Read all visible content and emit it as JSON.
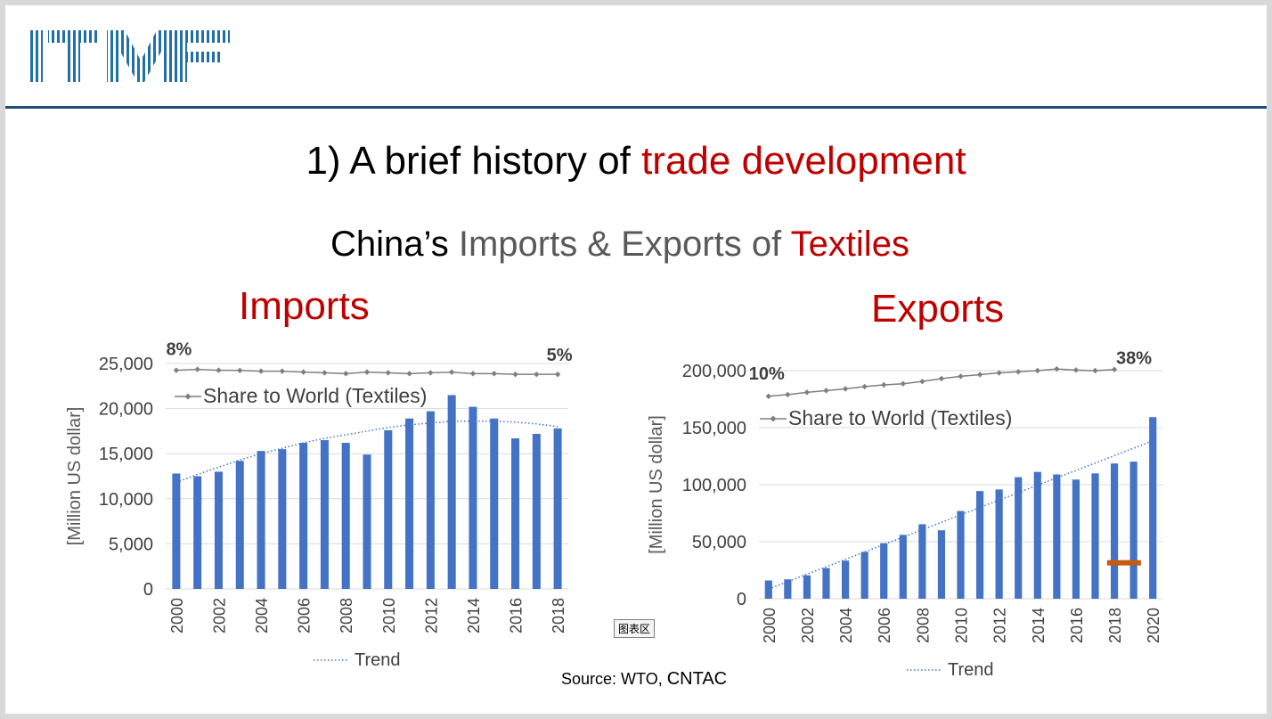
{
  "slide": {
    "logo_text": "ITMF",
    "title_part1": "1) A brief history of ",
    "title_part2": "trade development",
    "subtitle_part1": "China’s ",
    "subtitle_part2": "Imports & Exports of ",
    "subtitle_part3": "Textiles",
    "source_prefix": "Source: WTO, ",
    "source_suffix": "CNTAC",
    "chart_area_tooltip": "图表区",
    "colors": {
      "bar": "#4472c4",
      "red": "#c00000",
      "rule": "#1f4e79",
      "share_line": "#7f7f7f",
      "highlight": "#c55a11"
    }
  },
  "chart_data": [
    {
      "type": "bar",
      "heading": "Imports",
      "ylabel": "[Million US dollar]",
      "ylim": [
        0,
        25000
      ],
      "yticks": [
        0,
        5000,
        10000,
        15000,
        20000,
        25000
      ],
      "ytick_labels": [
        "0",
        "5,000",
        "10,000",
        "15,000",
        "20,000",
        "25,000"
      ],
      "categories": [
        2000,
        2001,
        2002,
        2003,
        2004,
        2005,
        2006,
        2007,
        2008,
        2009,
        2010,
        2011,
        2012,
        2013,
        2014,
        2015,
        2016,
        2017,
        2018
      ],
      "xtick_labels": [
        "2000",
        "2002",
        "2004",
        "2006",
        "2008",
        "2010",
        "2012",
        "2014",
        "2016",
        "2018"
      ],
      "values": [
        12800,
        12500,
        13000,
        14200,
        15300,
        15500,
        16200,
        16500,
        16200,
        14900,
        17600,
        18900,
        19700,
        21500,
        20200,
        18900,
        16700,
        17200,
        17800
      ],
      "trend": [
        11800,
        12700,
        13500,
        14300,
        15000,
        15600,
        16200,
        16700,
        17100,
        17500,
        17900,
        18200,
        18400,
        18600,
        18600,
        18600,
        18500,
        18300,
        18000
      ],
      "share_series": {
        "name": "Share to World (Textiles)",
        "values": [
          24250,
          24350,
          24250,
          24230,
          24150,
          24150,
          24050,
          23970,
          23880,
          24050,
          23970,
          23880,
          23970,
          24040,
          23880,
          23880,
          23800,
          23800,
          23800
        ],
        "start_label": "8%",
        "end_label": "5%"
      },
      "trend_legend": "Trend"
    },
    {
      "type": "bar",
      "heading": "Exports",
      "ylabel": "[Million US dollar]",
      "ylim": [
        0,
        200000
      ],
      "yticks": [
        0,
        50000,
        100000,
        150000,
        200000
      ],
      "ytick_labels": [
        "0",
        "50,000",
        "100,000",
        "150,000",
        "200,000"
      ],
      "categories": [
        2000,
        2001,
        2002,
        2003,
        2004,
        2005,
        2006,
        2007,
        2008,
        2009,
        2010,
        2011,
        2012,
        2013,
        2014,
        2015,
        2016,
        2017,
        2018,
        2019,
        2020
      ],
      "xtick_labels": [
        "2000",
        "2002",
        "2004",
        "2006",
        "2008",
        "2010",
        "2012",
        "2014",
        "2016",
        "2018",
        "2020"
      ],
      "values": [
        16000,
        17000,
        20500,
        26900,
        33400,
        41100,
        48700,
        56000,
        65300,
        60000,
        76900,
        94400,
        95800,
        106600,
        111200,
        109000,
        104500,
        109900,
        118600,
        120200,
        159200
      ],
      "trend": [
        8500,
        15000,
        21500,
        28000,
        34500,
        41000,
        47500,
        54000,
        60500,
        67000,
        73500,
        80000,
        86500,
        93000,
        99500,
        106000,
        112500,
        119000,
        125500,
        132000,
        138500
      ],
      "share_series": {
        "name": "Share to World (Textiles)",
        "values": [
          177500,
          179000,
          181000,
          182500,
          184000,
          186000,
          187500,
          188500,
          190500,
          193000,
          195000,
          196500,
          198000,
          199000,
          200000,
          201500,
          200500,
          200000,
          201000
        ],
        "start_label": "10%",
        "end_label": "38%"
      },
      "highlight_marker": {
        "x": 2018.5,
        "y": 31500
      },
      "trend_legend": "Trend"
    }
  ]
}
